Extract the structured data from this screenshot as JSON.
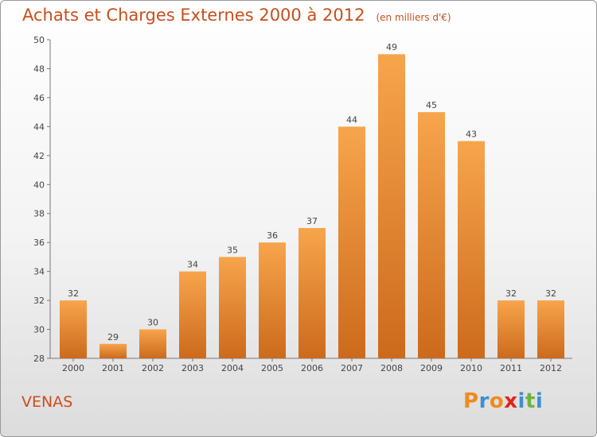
{
  "header": {
    "title": "Achats et Charges Externes 2000 à 2012",
    "unit": "(en milliers d'€)"
  },
  "footer": {
    "commune": "VENAS",
    "logo": "Proxiti"
  },
  "colors": {
    "title": "#c84f1c",
    "bar_light": "#f7a54c",
    "bar_dark": "#cc6a1c",
    "logo_letters": [
      "#f08a1e",
      "#3e8fd0",
      "#f08a1e",
      "#e2231a",
      "#3e8fd0",
      "#6cb33f",
      "#3e8fd0"
    ]
  },
  "chart_data": {
    "type": "bar",
    "categories": [
      "2000",
      "2001",
      "2002",
      "2003",
      "2004",
      "2005",
      "2006",
      "2007",
      "2008",
      "2009",
      "2010",
      "2011",
      "2012"
    ],
    "values": [
      32,
      29,
      30,
      34,
      35,
      36,
      37,
      44,
      49,
      45,
      43,
      32,
      32
    ],
    "title": "Achats et Charges Externes 2000 à 2012",
    "ylim": [
      28,
      50
    ],
    "yticks": [
      28,
      30,
      32,
      34,
      36,
      38,
      40,
      42,
      44,
      46,
      48,
      50
    ],
    "grid": false,
    "legend": "none"
  }
}
